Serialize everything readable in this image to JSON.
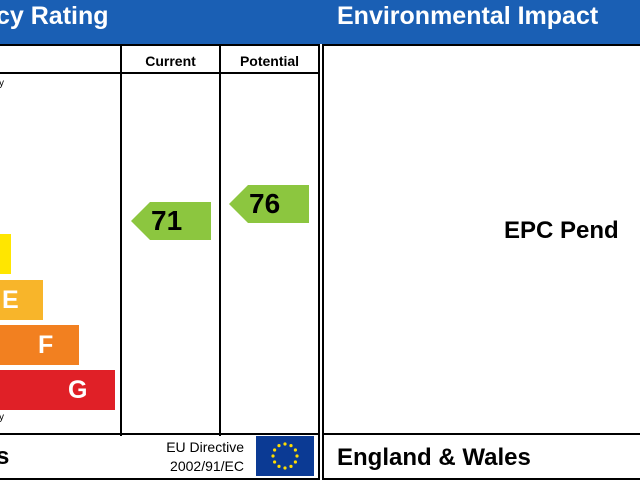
{
  "header": {
    "left_title": "cy Rating",
    "right_title": "Environmental Impact"
  },
  "columns": {
    "current": "Current",
    "potential": "Potential"
  },
  "scale_marks": {
    "top": "y",
    "bottom": "y"
  },
  "bands": [
    {
      "letter": "",
      "color": "#ffe600"
    },
    {
      "letter": "E",
      "color": "#f8b52a"
    },
    {
      "letter": "F",
      "color": "#f28020"
    },
    {
      "letter": "G",
      "color": "#e02027"
    }
  ],
  "ratings": {
    "current": {
      "value": "71",
      "color": "#8cc63f"
    },
    "potential": {
      "value": "76",
      "color": "#8cc63f"
    }
  },
  "footer": {
    "left_text": "s",
    "eu_line1": "EU Directive",
    "eu_line2": "2002/91/EC",
    "region": "England & Wales"
  },
  "environmental": {
    "status_text": "EPC Pend"
  }
}
